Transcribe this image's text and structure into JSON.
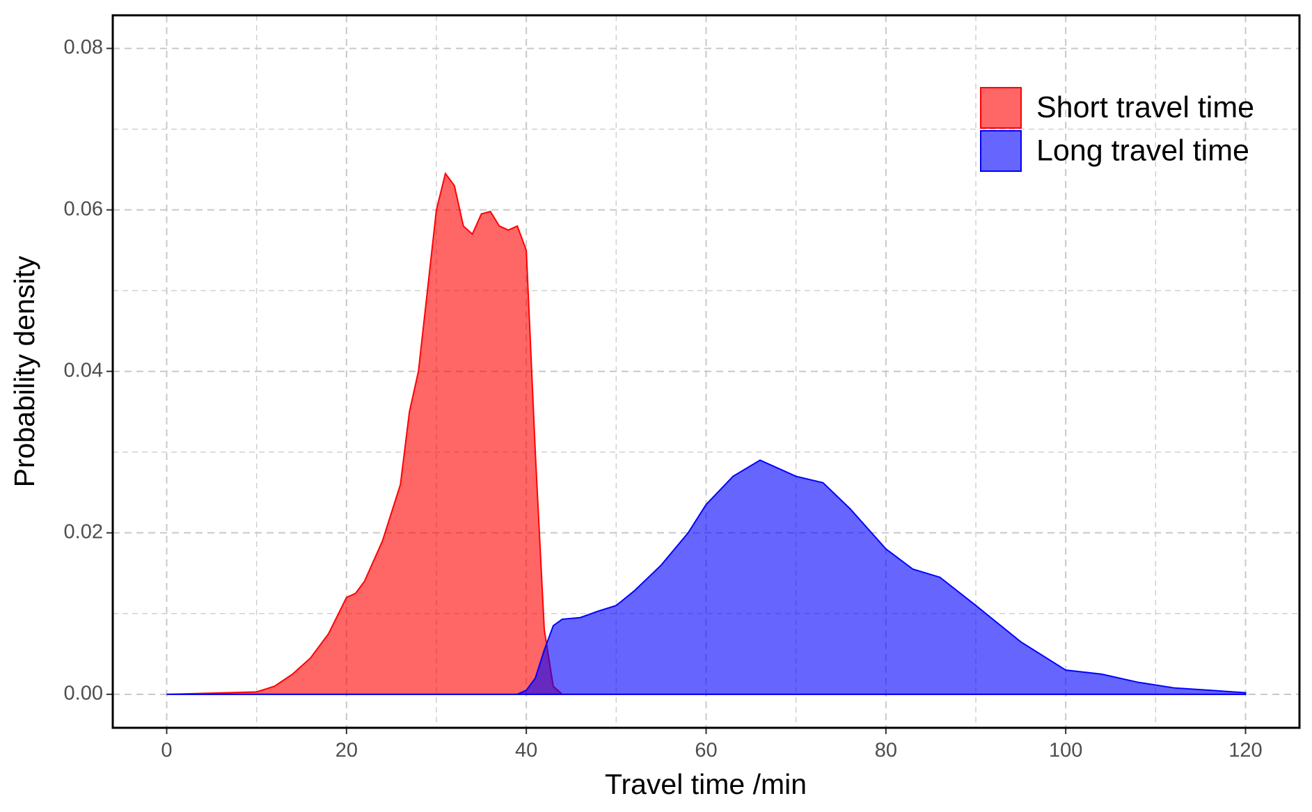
{
  "chart_data": {
    "type": "area",
    "x_label": "Travel time /min",
    "y_label": "Probability density",
    "x": [
      0,
      7,
      10,
      12,
      14,
      16,
      18,
      20,
      21,
      22,
      24,
      26,
      27,
      28,
      29,
      30,
      31,
      32,
      33,
      34,
      35,
      36,
      37,
      38,
      39,
      40,
      41,
      42,
      43,
      44,
      46,
      48,
      50,
      52,
      55,
      58,
      60,
      63,
      66,
      68,
      70,
      73,
      76,
      80,
      83,
      86,
      90,
      95,
      100,
      104,
      108,
      112,
      116,
      120
    ],
    "series": [
      {
        "name": "Short travel time",
        "color": "#ff0000",
        "values": [
          0,
          0.0002,
          0.0003,
          0.001,
          0.0025,
          0.0045,
          0.0075,
          0.012,
          0.0125,
          0.014,
          0.019,
          0.026,
          0.035,
          0.04,
          0.05,
          0.06,
          0.0645,
          0.063,
          0.058,
          0.057,
          0.0595,
          0.0598,
          0.058,
          0.0575,
          0.058,
          0.055,
          0.03,
          0.008,
          0.001,
          0,
          0,
          0,
          0,
          0,
          0,
          0,
          0,
          0,
          0,
          0,
          0,
          0,
          0,
          0,
          0,
          0,
          0,
          0,
          0,
          0,
          0,
          0,
          0,
          0
        ]
      },
      {
        "name": "Long travel time",
        "color": "#0000ff",
        "values": [
          0,
          0,
          0,
          0,
          0,
          0,
          0,
          0,
          0,
          0,
          0,
          0,
          0,
          0,
          0,
          0,
          0,
          0,
          0,
          0,
          0,
          0,
          0,
          0,
          0,
          0.0005,
          0.002,
          0.0055,
          0.0085,
          0.0093,
          0.0095,
          0.0103,
          0.011,
          0.0128,
          0.016,
          0.02,
          0.0235,
          0.027,
          0.029,
          0.028,
          0.027,
          0.0262,
          0.023,
          0.018,
          0.0155,
          0.0145,
          0.011,
          0.0065,
          0.003,
          0.0025,
          0.0015,
          0.0008,
          0.0005,
          0.0002
        ]
      }
    ],
    "xlim": [
      -6,
      126
    ],
    "ylim": [
      -0.00415,
      0.0841
    ],
    "xticks": [
      0,
      20,
      40,
      60,
      80,
      100,
      120
    ],
    "yticks": [
      {
        "value": 0,
        "label": "0.00"
      },
      {
        "value": 0.02,
        "label": "0.02"
      },
      {
        "value": 0.04,
        "label": "0.04"
      },
      {
        "value": 0.06,
        "label": "0.06"
      },
      {
        "value": 0.08,
        "label": "0.08"
      }
    ],
    "grid": true,
    "legend": "top-right"
  }
}
